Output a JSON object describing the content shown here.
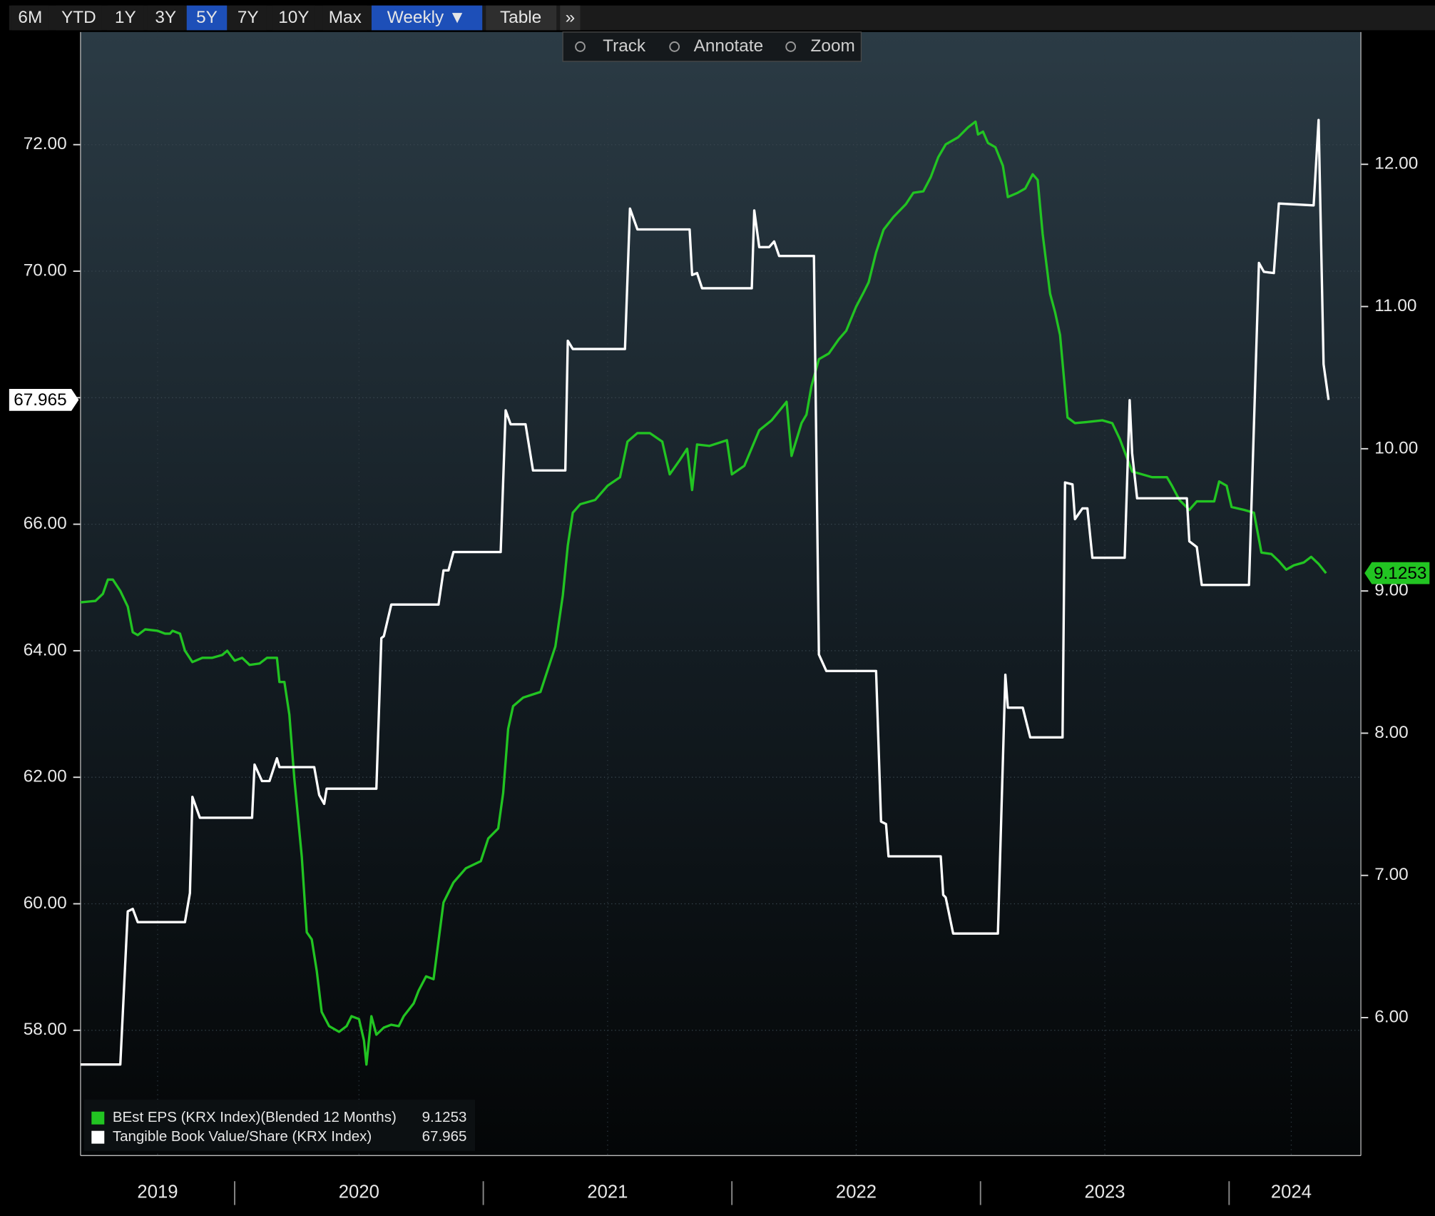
{
  "toolbar": {
    "ranges": [
      "6M",
      "YTD",
      "1Y",
      "3Y",
      "5Y",
      "7Y",
      "10Y",
      "Max"
    ],
    "selected_range": "5Y",
    "frequency": "Weekly ▼",
    "table": "Table",
    "more": "»",
    "tools": [
      "Track",
      "Annotate",
      "Zoom"
    ]
  },
  "chart_data": {
    "type": "line",
    "xlim": [
      2019.38,
      2024.53
    ],
    "xticks": [
      {
        "value": 2019.69,
        "label": "2019"
      },
      {
        "value": 2020.5,
        "label": "2020"
      },
      {
        "value": 2021.5,
        "label": "2021"
      },
      {
        "value": 2022.5,
        "label": "2022"
      },
      {
        "value": 2023.5,
        "label": "2023"
      },
      {
        "value": 2024.25,
        "label": "2024"
      }
    ],
    "ylim": [
      56.02,
      73.78
    ],
    "yticks": [
      {
        "value": 58,
        "label": "58.00"
      },
      {
        "value": 60,
        "label": "60.00"
      },
      {
        "value": 62,
        "label": "62.00"
      },
      {
        "value": 64,
        "label": "64.00"
      },
      {
        "value": 66,
        "label": "66.00"
      },
      {
        "value": 68,
        "label": "68.00"
      },
      {
        "value": 70,
        "label": "70.00"
      },
      {
        "value": 72,
        "label": "72.00"
      }
    ],
    "y2lim": [
      5.03,
      12.93
    ],
    "y2ticks": [
      {
        "value": 6,
        "label": "6.00"
      },
      {
        "value": 7,
        "label": "7.00"
      },
      {
        "value": 8,
        "label": "8.00"
      },
      {
        "value": 9,
        "label": "9.00"
      },
      {
        "value": 10,
        "label": "10.00"
      },
      {
        "value": 11,
        "label": "11.00"
      },
      {
        "value": 12,
        "label": "12.00"
      }
    ],
    "grid": true,
    "legend": "lower left",
    "series": [
      {
        "name": "BEst EPS (KRX Index)(Blended 12 Months)",
        "color": "#22c422",
        "axis": "y2",
        "x": [
          2019.38,
          2019.44,
          2019.47,
          2019.49,
          2019.51,
          2019.54,
          2019.57,
          2019.59,
          2019.61,
          2019.64,
          2019.69,
          2019.72,
          2019.74,
          2019.75,
          2019.78,
          2019.8,
          2019.83,
          2019.87,
          2019.91,
          2019.95,
          2019.97,
          2020.0,
          2020.03,
          2020.06,
          2020.1,
          2020.13,
          2020.17,
          2020.18,
          2020.2,
          2020.22,
          2020.24,
          2020.27,
          2020.29,
          2020.31,
          2020.33,
          2020.35,
          2020.38,
          2020.42,
          2020.45,
          2020.47,
          2020.5,
          2020.52,
          2020.53,
          2020.55,
          2020.57,
          2020.6,
          2020.63,
          2020.66,
          2020.68,
          2020.72,
          2020.74,
          2020.77,
          2020.8,
          2020.84,
          2020.88,
          2020.93,
          2020.99,
          2021.02,
          2021.06,
          2021.08,
          2021.1,
          2021.12,
          2021.16,
          2021.23,
          2021.26,
          2021.29,
          2021.32,
          2021.34,
          2021.36,
          2021.39,
          2021.45,
          2021.5,
          2021.55,
          2021.58,
          2021.62,
          2021.67,
          2021.72,
          2021.75,
          2021.79,
          2021.82,
          2021.84,
          2021.86,
          2021.91,
          2021.98,
          2022.0,
          2022.05,
          2022.11,
          2022.16,
          2022.22,
          2022.24,
          2022.28,
          2022.3,
          2022.32,
          2022.35,
          2022.39,
          2022.43,
          2022.46,
          2022.5,
          2022.53,
          2022.55,
          2022.58,
          2022.61,
          2022.65,
          2022.7,
          2022.73,
          2022.77,
          2022.8,
          2022.83,
          2022.86,
          2022.91,
          2022.95,
          2022.98,
          2022.99,
          2023.01,
          2023.03,
          2023.06,
          2023.09,
          2023.11,
          2023.15,
          2023.18,
          2023.21,
          2023.23,
          2023.25,
          2023.28,
          2023.3,
          2023.32,
          2023.35,
          2023.38,
          2023.44,
          2023.49,
          2023.53,
          2023.56,
          2023.61,
          2023.65,
          2023.69,
          2023.75,
          2023.77,
          2023.8,
          2023.84,
          2023.87,
          2023.91,
          2023.94,
          2023.96,
          2023.99,
          2024.01,
          2024.06,
          2024.1,
          2024.13,
          2024.17,
          2024.2,
          2024.23,
          2024.26,
          2024.3,
          2024.33,
          2024.36,
          2024.39
        ],
        "values": [
          8.92,
          8.93,
          8.98,
          9.08,
          9.08,
          9.0,
          8.89,
          8.71,
          8.69,
          8.73,
          8.72,
          8.7,
          8.7,
          8.72,
          8.7,
          8.58,
          8.5,
          8.53,
          8.53,
          8.55,
          8.58,
          8.51,
          8.53,
          8.48,
          8.49,
          8.53,
          8.53,
          8.36,
          8.36,
          8.13,
          7.68,
          7.13,
          6.6,
          6.55,
          6.33,
          6.04,
          5.94,
          5.9,
          5.94,
          6.01,
          5.99,
          5.84,
          5.67,
          6.01,
          5.88,
          5.93,
          5.95,
          5.94,
          6.01,
          6.1,
          6.19,
          6.29,
          6.27,
          6.81,
          6.95,
          7.05,
          7.1,
          7.26,
          7.33,
          7.58,
          8.03,
          8.19,
          8.25,
          8.29,
          8.45,
          8.61,
          8.97,
          9.32,
          9.55,
          9.61,
          9.64,
          9.74,
          9.8,
          10.05,
          10.11,
          10.11,
          10.05,
          9.82,
          9.92,
          10.0,
          9.71,
          10.03,
          10.02,
          10.06,
          9.82,
          9.88,
          10.13,
          10.2,
          10.33,
          9.95,
          10.18,
          10.24,
          10.44,
          10.63,
          10.67,
          10.77,
          10.83,
          11.0,
          11.1,
          11.17,
          11.38,
          11.54,
          11.63,
          11.72,
          11.8,
          11.81,
          11.91,
          12.05,
          12.14,
          12.19,
          12.26,
          12.3,
          12.21,
          12.23,
          12.15,
          12.12,
          11.99,
          11.77,
          11.8,
          11.83,
          11.93,
          11.89,
          11.51,
          11.09,
          10.96,
          10.8,
          10.22,
          10.18,
          10.19,
          10.2,
          10.18,
          10.07,
          9.84,
          9.82,
          9.8,
          9.8,
          9.74,
          9.64,
          9.57,
          9.63,
          9.63,
          9.63,
          9.77,
          9.74,
          9.59,
          9.57,
          9.55,
          9.27,
          9.26,
          9.21,
          9.15,
          9.18,
          9.2,
          9.24,
          9.19,
          9.1253
        ]
      },
      {
        "name": "Tangible Book Value/Share (KRX Index)",
        "color": "#ffffff",
        "axis": "y",
        "x": [
          2019.38,
          2019.54,
          2019.57,
          2019.59,
          2019.61,
          2019.8,
          2019.82,
          2019.83,
          2019.86,
          2020.07,
          2020.08,
          2020.11,
          2020.14,
          2020.17,
          2020.18,
          2020.32,
          2020.34,
          2020.36,
          2020.37,
          2020.57,
          2020.59,
          2020.6,
          2020.63,
          2020.82,
          2020.84,
          2020.86,
          2020.88,
          2021.07,
          2021.09,
          2021.11,
          2021.17,
          2021.2,
          2021.33,
          2021.34,
          2021.36,
          2021.57,
          2021.59,
          2021.62,
          2021.83,
          2021.84,
          2021.86,
          2021.88,
          2022.08,
          2022.09,
          2022.11,
          2022.15,
          2022.17,
          2022.19,
          2022.33,
          2022.35,
          2022.38,
          2022.58,
          2022.6,
          2022.62,
          2022.63,
          2022.84,
          2022.85,
          2022.86,
          2022.89,
          2023.07,
          2023.1,
          2023.11,
          2023.17,
          2023.2,
          2023.33,
          2023.34,
          2023.37,
          2023.38,
          2023.41,
          2023.43,
          2023.45,
          2023.58,
          2023.6,
          2023.61,
          2023.63,
          2023.83,
          2023.84,
          2023.87,
          2023.89,
          2024.08,
          2024.12,
          2024.14,
          2024.18,
          2024.2,
          2024.34,
          2024.36,
          2024.38,
          2024.4
        ],
        "values": [
          57.46,
          57.46,
          59.88,
          59.92,
          59.71,
          59.71,
          60.17,
          61.69,
          61.36,
          61.36,
          62.2,
          61.94,
          61.94,
          62.3,
          62.16,
          62.16,
          61.72,
          61.58,
          61.82,
          61.82,
          64.2,
          64.23,
          64.73,
          64.73,
          65.27,
          65.27,
          65.56,
          65.56,
          67.8,
          67.58,
          67.58,
          66.85,
          66.85,
          68.9,
          68.77,
          68.77,
          70.99,
          70.66,
          70.66,
          69.94,
          69.97,
          69.73,
          69.73,
          70.96,
          70.38,
          70.38,
          70.47,
          70.24,
          70.24,
          63.94,
          63.68,
          63.68,
          61.3,
          61.26,
          60.75,
          60.75,
          60.14,
          60.1,
          59.53,
          59.53,
          63.62,
          63.1,
          63.1,
          62.63,
          62.63,
          66.66,
          66.63,
          66.08,
          66.25,
          66.25,
          65.47,
          65.47,
          67.96,
          67.12,
          66.41,
          66.41,
          65.73,
          65.64,
          65.04,
          65.04,
          70.13,
          69.99,
          69.97,
          71.07,
          71.04,
          72.39,
          68.53,
          67.965
        ]
      }
    ]
  }
}
